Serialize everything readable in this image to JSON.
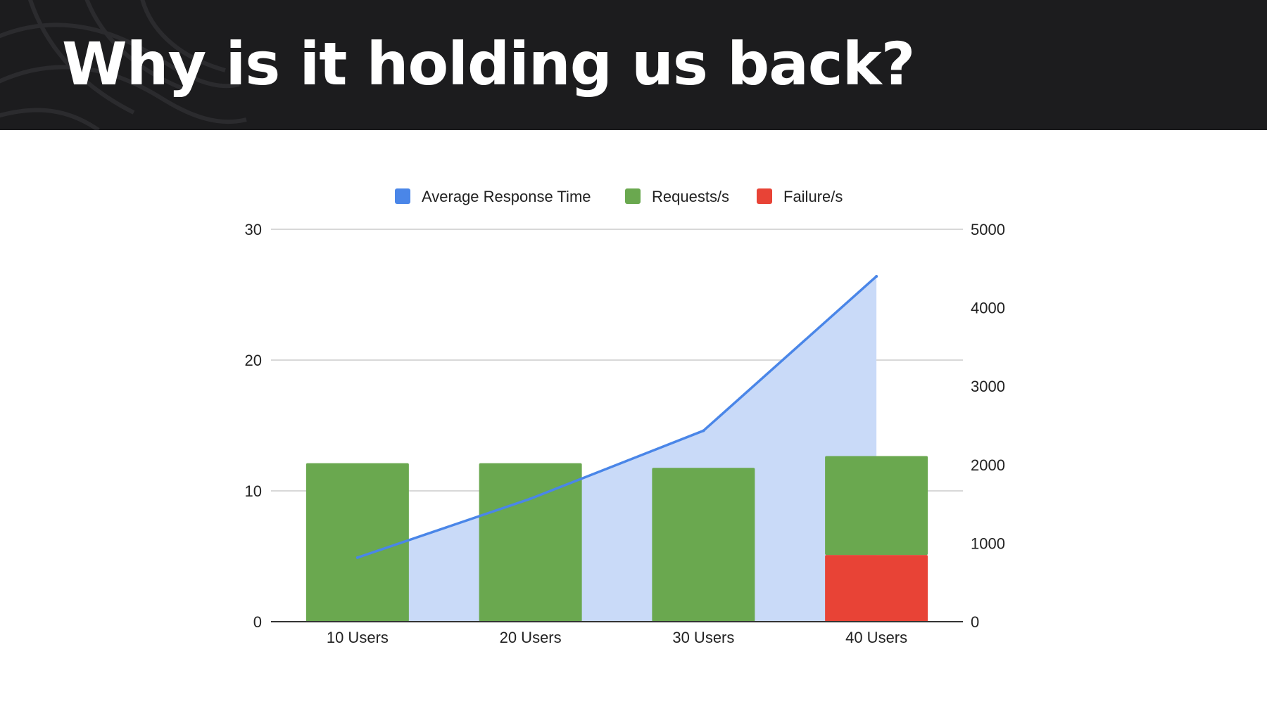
{
  "slide": {
    "title": "Why is it holding us back?"
  },
  "colors": {
    "header_bg": "#1c1c1e",
    "title_text": "#ffffff",
    "response_time_line": "#4a86e8",
    "response_time_area": "#c9daf8",
    "requests_bar": "#6aa84f",
    "failures_bar": "#e84336",
    "gridline": "#cccccc",
    "axis_text": "#222222"
  },
  "chart_data": {
    "type": "bar",
    "title": "",
    "xlabel": "",
    "ylabel": "",
    "categories": [
      "10 Users",
      "20 Users",
      "30 Users",
      "40 Users"
    ],
    "series": [
      {
        "name": "Average Response Time",
        "kind": "line-area",
        "axis": "left",
        "color": "#4a86e8",
        "values": [
          4.9,
          9.4,
          14.6,
          26.4
        ]
      },
      {
        "name": "Requests/s",
        "kind": "bar-stacked",
        "axis": "right",
        "color": "#6aa84f",
        "values": [
          2020,
          2020,
          1960,
          1260
        ]
      },
      {
        "name": "Failure/s",
        "kind": "bar-stacked",
        "axis": "right",
        "color": "#e84336",
        "values": [
          0,
          0,
          0,
          850
        ]
      }
    ],
    "left_axis": {
      "ylim": [
        0,
        30
      ],
      "ticks": [
        0,
        10,
        20,
        30
      ],
      "tick_labels": [
        "0",
        "10",
        "20",
        "30"
      ]
    },
    "right_axis": {
      "ylim": [
        0,
        5000
      ],
      "ticks": [
        0,
        1000,
        2000,
        3000,
        4000,
        5000
      ],
      "tick_labels": [
        "0",
        "1000",
        "2000",
        "3000",
        "4000",
        "5000"
      ]
    },
    "grid": true,
    "legend_position": "top"
  }
}
